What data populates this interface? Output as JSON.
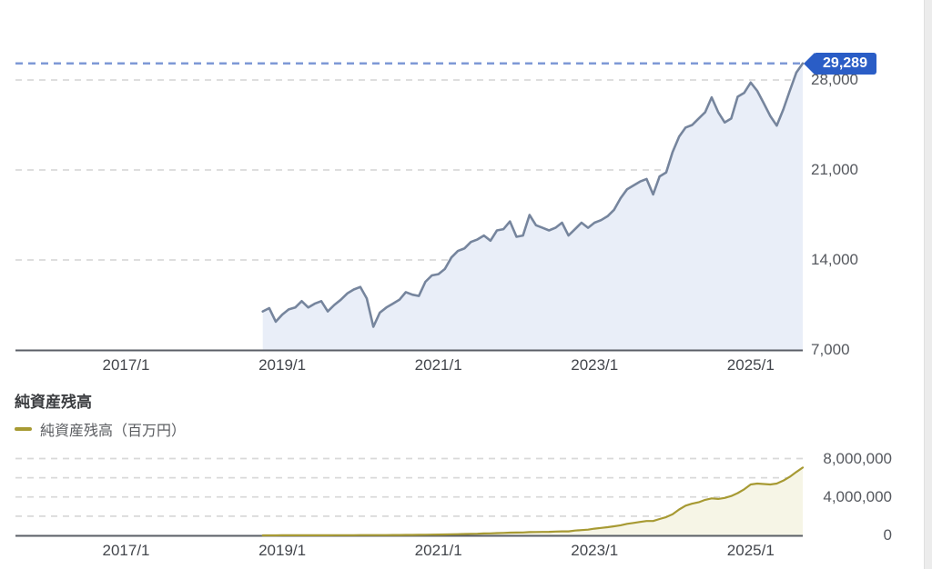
{
  "colors": {
    "price_line": "#76859D",
    "price_fill": "#E9EEF8",
    "current_dash": "#7E99D6",
    "badge_bg": "#2A5DC6",
    "badge_text": "#FFFFFF",
    "asset_line": "#A79A33",
    "asset_fill": "#F6F5E6",
    "grid": "#D9D9D9",
    "axis": "#5A5E66"
  },
  "chart_data": [
    {
      "type": "area",
      "name": "price-history",
      "x_interval": "monthly",
      "x_start": "2018/10",
      "x_axis_domain": [
        "2015/8",
        "2025/9"
      ],
      "x_tick_labels": [
        "2017/1",
        "2019/1",
        "2021/1",
        "2023/1",
        "2025/1"
      ],
      "ylim": [
        7000,
        30000
      ],
      "y_ticks": [
        {
          "label": "28,000",
          "value": 28000
        },
        {
          "label": "21,000",
          "value": 21000
        },
        {
          "label": "14,000",
          "value": 14000
        },
        {
          "label": "7,000",
          "value": 7000
        }
      ],
      "gridline_values": [
        28000,
        21000,
        14000
      ],
      "current_value": 29289,
      "current_value_label": "29,289",
      "values": [
        10000,
        10250,
        9200,
        9750,
        10150,
        10300,
        10800,
        10300,
        10600,
        10800,
        10000,
        10500,
        10900,
        11400,
        11700,
        11900,
        11000,
        8800,
        9900,
        10300,
        10600,
        10900,
        11500,
        11300,
        11200,
        12300,
        12800,
        12900,
        13300,
        14200,
        14700,
        14900,
        15400,
        15600,
        15900,
        15500,
        16300,
        16400,
        17000,
        15800,
        15900,
        17500,
        16700,
        16500,
        16300,
        16500,
        16900,
        15900,
        16400,
        16900,
        16500,
        16900,
        17100,
        17400,
        17900,
        18800,
        19500,
        19800,
        20100,
        20300,
        19100,
        20500,
        20800,
        22400,
        23600,
        24300,
        24500,
        25000,
        25500,
        26650,
        25500,
        24700,
        25000,
        26700,
        27000,
        27800,
        27150,
        26200,
        25200,
        24450,
        25700,
        27150,
        28570,
        29289
      ]
    },
    {
      "type": "area",
      "name": "net-assets",
      "title": "純資産残高",
      "legend": "純資産残高（百万円）",
      "x_interval": "monthly",
      "x_start": "2018/10",
      "x_axis_domain": [
        "2015/8",
        "2025/9"
      ],
      "x_tick_labels": [
        "2017/1",
        "2019/1",
        "2021/1",
        "2023/1",
        "2025/1"
      ],
      "ylim": [
        0,
        8000000
      ],
      "y_ticks": [
        {
          "label": "8,000,000",
          "value": 8000000
        },
        {
          "label": "4,000,000",
          "value": 4000000
        },
        {
          "label": "0",
          "value": 0
        }
      ],
      "gridline_values": [
        8000000,
        6000000,
        4000000,
        2000000
      ],
      "values": [
        2000,
        3000,
        4000,
        5000,
        6000,
        7000,
        9000,
        10000,
        11000,
        13000,
        14000,
        16000,
        18000,
        20000,
        22000,
        25000,
        26000,
        24000,
        28000,
        32000,
        36000,
        41000,
        47000,
        52000,
        57000,
        65000,
        74000,
        83000,
        95000,
        110000,
        125000,
        140000,
        158000,
        175000,
        195000,
        210000,
        235000,
        255000,
        284000,
        290000,
        300000,
        340000,
        350000,
        360000,
        365000,
        400000,
        420000,
        420000,
        500000,
        550000,
        600000,
        700000,
        780000,
        850000,
        950000,
        1050000,
        1200000,
        1300000,
        1400000,
        1500000,
        1500000,
        1700000,
        1900000,
        2200000,
        2700000,
        3100000,
        3300000,
        3450000,
        3700000,
        3850000,
        3800000,
        3900000,
        4100000,
        4400000,
        4800000,
        5300000,
        5400000,
        5350000,
        5300000,
        5400000,
        5700000,
        6100000,
        6600000,
        7060000
      ]
    }
  ]
}
